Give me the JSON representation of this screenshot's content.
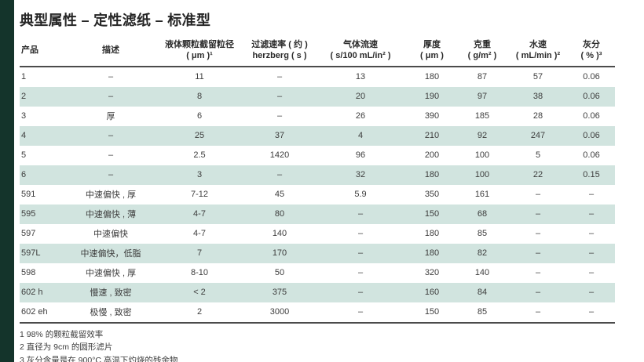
{
  "title": "典型属性 – 定性滤纸 – 标准型",
  "colors": {
    "accent_bar": "#14342b",
    "row_stripe": "#d1e4df",
    "rule": "#4b4b4b",
    "text": "#3d3d3d"
  },
  "table": {
    "columns": [
      {
        "line1": "产品",
        "line2": ""
      },
      {
        "line1": "描述",
        "line2": ""
      },
      {
        "line1": "液体颗粒截留粒径",
        "line2": "( μm )¹"
      },
      {
        "line1": "过滤速率 ( 约 )",
        "line2": "herzberg ( s )"
      },
      {
        "line1": "气体流速",
        "line2": "( s/100 mL/in² )"
      },
      {
        "line1": "厚度",
        "line2": "( μm )"
      },
      {
        "line1": "克重",
        "line2": "( g/m² )"
      },
      {
        "line1": "水速",
        "line2": "( mL/min )²"
      },
      {
        "line1": "灰分",
        "line2": "( % )³"
      }
    ],
    "rows": [
      [
        "1",
        "–",
        "11",
        "–",
        "13",
        "180",
        "87",
        "57",
        "0.06"
      ],
      [
        "2",
        "–",
        "8",
        "–",
        "20",
        "190",
        "97",
        "38",
        "0.06"
      ],
      [
        "3",
        "厚",
        "6",
        "–",
        "26",
        "390",
        "185",
        "28",
        "0.06"
      ],
      [
        "4",
        "–",
        "25",
        "37",
        "4",
        "210",
        "92",
        "247",
        "0.06"
      ],
      [
        "5",
        "–",
        "2.5",
        "1420",
        "96",
        "200",
        "100",
        "5",
        "0.06"
      ],
      [
        "6",
        "–",
        "3",
        "–",
        "32",
        "180",
        "100",
        "22",
        "0.15"
      ],
      [
        "591",
        "中速偏快 , 厚",
        "7-12",
        "45",
        "5.9",
        "350",
        "161",
        "–",
        "–"
      ],
      [
        "595",
        "中速偏快 , 薄",
        "4-7",
        "80",
        "–",
        "150",
        "68",
        "–",
        "–"
      ],
      [
        "597",
        "中速偏快",
        "4-7",
        "140",
        "–",
        "180",
        "85",
        "–",
        "–"
      ],
      [
        "597L",
        "中速偏快，低脂",
        "7",
        "170",
        "–",
        "180",
        "82",
        "–",
        "–"
      ],
      [
        "598",
        "中速偏快 , 厚",
        "8-10",
        "50",
        "–",
        "320",
        "140",
        "–",
        "–"
      ],
      [
        "602 h",
        "慢速 , 致密",
        "< 2",
        "375",
        "–",
        "160",
        "84",
        "–",
        "–"
      ],
      [
        "602 eh",
        "极慢 , 致密",
        "2",
        "3000",
        "–",
        "150",
        "85",
        "–",
        "–"
      ]
    ]
  },
  "footnotes": [
    "1 98% 的颗粒截留效率",
    "2 直径为 9cm 的圆形滤片",
    "3 灰分含量是在 900°C 高温下灼烧的残余物"
  ]
}
